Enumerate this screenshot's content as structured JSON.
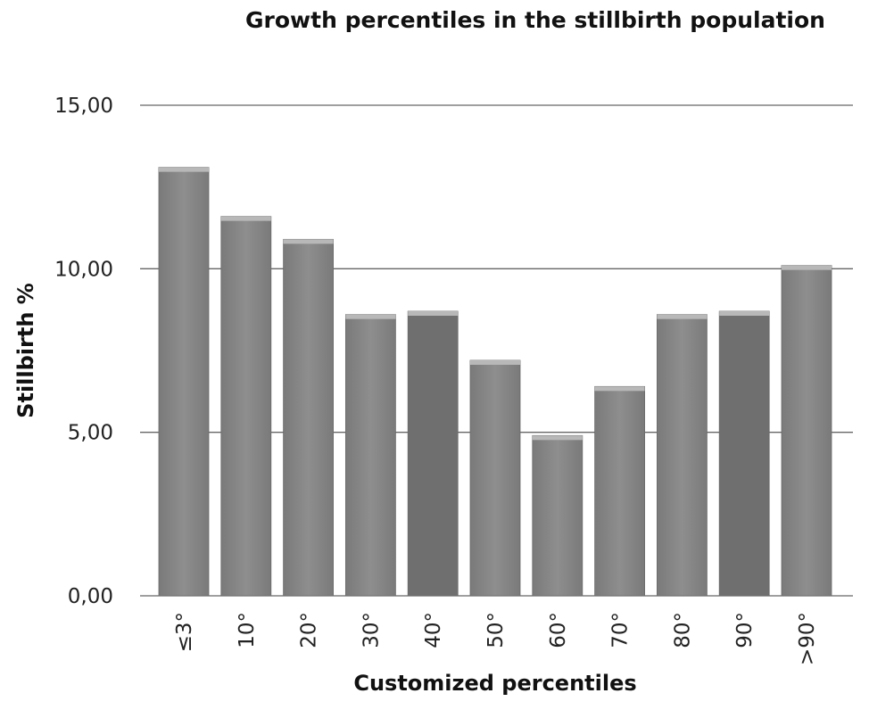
{
  "chart_data": {
    "type": "bar",
    "title": "Growth percentiles in the stillbirth population",
    "xlabel": "Customized percentiles",
    "ylabel": "Stillbirth %",
    "categories": [
      "≤3°",
      "10°",
      "20°",
      "30°",
      "40°",
      "50°",
      "60°",
      "70°",
      "80°",
      "90°",
      ">90°"
    ],
    "values": [
      13.1,
      11.6,
      10.9,
      8.6,
      8.7,
      7.2,
      4.9,
      6.4,
      8.6,
      8.7,
      10.1
    ],
    "yticks": [
      "0,00",
      "5,00",
      "10,00",
      "15,00"
    ],
    "ylim": [
      0,
      15
    ],
    "grid": true,
    "legend": "none",
    "colors": {
      "bar": "#8a8a8a",
      "bar_dark": "#6f6f6f",
      "grid": "#666666"
    }
  }
}
